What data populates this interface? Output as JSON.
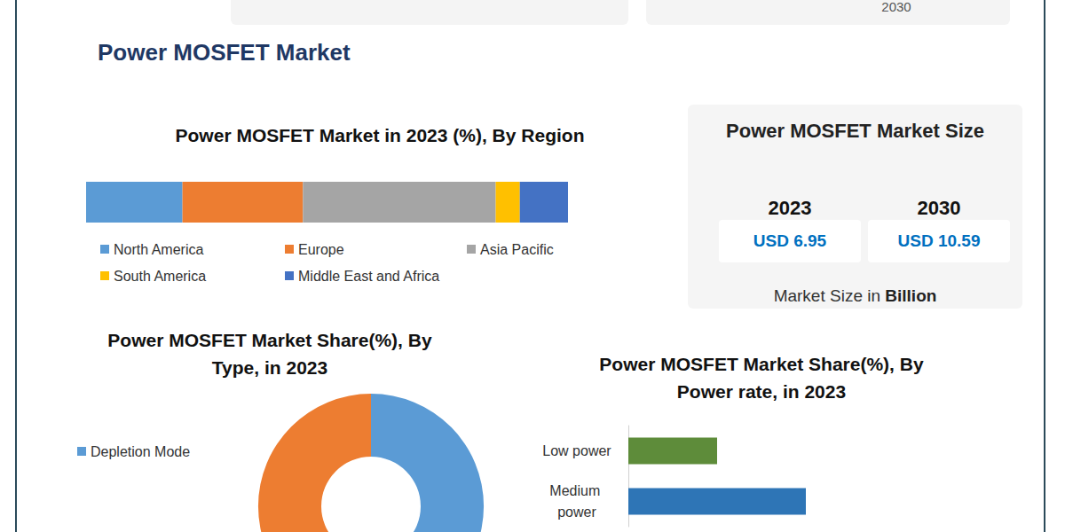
{
  "title": "Power MOSFET Market",
  "header_note": "2030",
  "market_size": {
    "title": "Power MOSFET Market Size",
    "entries": [
      {
        "year": "2023",
        "value": "USD 6.95"
      },
      {
        "year": "2030",
        "value": "USD 10.59"
      }
    ],
    "unit_prefix": "Market Size in",
    "unit": "Billion"
  },
  "chart_data": [
    {
      "type": "bar",
      "title": "Power MOSFET Market in 2023 (%), By Region",
      "orientation": "horizontal",
      "stacked": true,
      "categories": [
        null
      ],
      "series": [
        {
          "name": "North America",
          "color": "#5B9BD5",
          "values": [
            20
          ]
        },
        {
          "name": "Europe",
          "color": "#ED7D31",
          "values": [
            25
          ]
        },
        {
          "name": "Asia Pacific",
          "color": "#A5A5A5",
          "values": [
            40
          ]
        },
        {
          "name": "South America",
          "color": "#FFC000",
          "values": [
            5
          ]
        },
        {
          "name": "Middle East and Africa",
          "color": "#4472C4",
          "values": [
            10
          ]
        }
      ],
      "xlim": [
        0,
        100
      ],
      "tick_labels": false,
      "grid": false,
      "legend": "bottom"
    },
    {
      "type": "pie",
      "title": "Power MOSFET Market Share(%), By Type, in 2023",
      "categories": [
        "Depletion Mode",
        null
      ],
      "values": [
        50,
        50
      ],
      "colors": [
        "#5B9BD5",
        "#ED7D31"
      ],
      "legend": "left"
    },
    {
      "type": "bar",
      "title": "Power MOSFET Market Share(%), By Power rate, in 2023",
      "orientation": "horizontal",
      "categories": [
        "Low power",
        "Medium power"
      ],
      "values": [
        20,
        40
      ],
      "colors": [
        "#5E8C3A",
        "#2E75B6"
      ],
      "xlim": [
        0,
        50
      ],
      "tick_labels": "y",
      "grid": false
    }
  ]
}
